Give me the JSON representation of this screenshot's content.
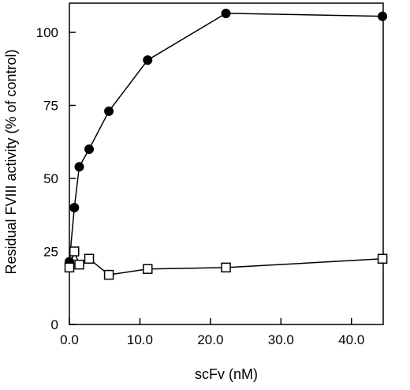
{
  "chart_data": {
    "type": "line",
    "title": "",
    "xlabel": "scFv (nM)",
    "ylabel": "Residual FVIII activity (% of control)",
    "xlim": [
      0,
      44.5
    ],
    "ylim": [
      0,
      110
    ],
    "x_ticks": [
      "0.0",
      "10.0",
      "20.0",
      "30.0",
      "40.0"
    ],
    "y_ticks": [
      "0",
      "25",
      "50",
      "75",
      "100"
    ],
    "grid": false,
    "series": [
      {
        "marker": "filled-circle",
        "color": "#000000",
        "points": [
          {
            "x": 0,
            "y": 21.5
          },
          {
            "x": 0.7,
            "y": 40
          },
          {
            "x": 1.4,
            "y": 54
          },
          {
            "x": 2.8,
            "y": 60
          },
          {
            "x": 5.6,
            "y": 73
          },
          {
            "x": 11.1,
            "y": 90.5
          },
          {
            "x": 22.2,
            "y": 106.5
          },
          {
            "x": 44.4,
            "y": 105.5
          }
        ]
      },
      {
        "marker": "open-square",
        "color": "#000000",
        "points": [
          {
            "x": 0,
            "y": 19.5
          },
          {
            "x": 0.7,
            "y": 25
          },
          {
            "x": 1.4,
            "y": 20.5
          },
          {
            "x": 2.8,
            "y": 22.5
          },
          {
            "x": 5.6,
            "y": 17
          },
          {
            "x": 11.1,
            "y": 19
          },
          {
            "x": 22.2,
            "y": 19.5
          },
          {
            "x": 44.4,
            "y": 22.5
          }
        ]
      }
    ]
  }
}
